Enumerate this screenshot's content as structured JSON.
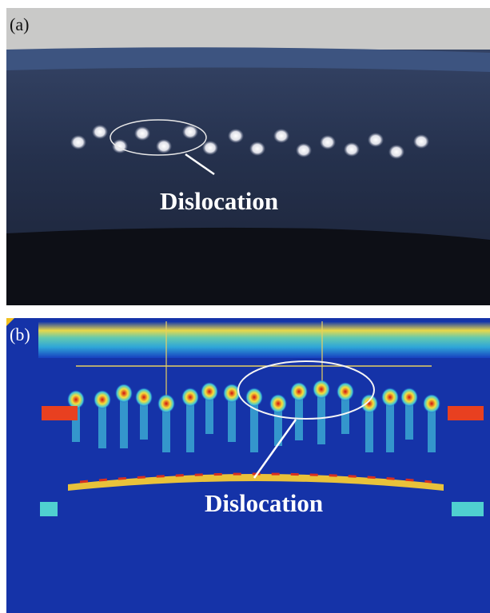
{
  "panels": [
    {
      "label": "(a)",
      "annotation": "Dislocation"
    },
    {
      "label": "(b)",
      "annotation": "Dislocation"
    }
  ]
}
